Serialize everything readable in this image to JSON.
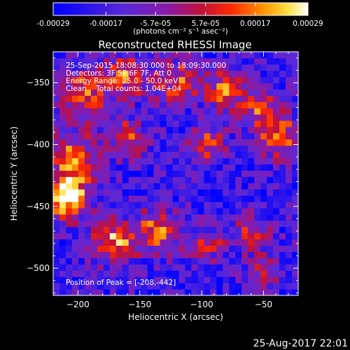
{
  "chart_data": {
    "type": "heatmap",
    "title": "Reconstructed RHESSI Image",
    "xlabel": "Heliocentric X (arcsec)",
    "ylabel": "Heliocentric Y (arcsec)",
    "xlim": [
      -220,
      -22
    ],
    "ylim": [
      -522,
      -325
    ],
    "x_ticks": [
      -200,
      -150,
      -100,
      -50
    ],
    "y_ticks": [
      -500,
      -450,
      -400,
      -350
    ],
    "colorbar": {
      "ticks": [
        "-0.00029",
        "-0.00017",
        "-5.7e-05",
        "5.7e-05",
        "0.00017",
        "0.00029"
      ],
      "unit_label": "(photons cm⁻² s⁻¹ asec⁻²)",
      "range": [
        -0.00029,
        0.00029
      ],
      "colormap": "blue-purple-red-yellow-white"
    },
    "annotations": [
      "25-Sep-2015 18:08:30.000 to 18:09:30.000",
      "Detectors: 3F 5F 6F 7F, Att 0",
      "Energy Range: 25.0 - 50.0 keV",
      "Clean    Total counts: 1.04E+04"
    ],
    "peak_label": "Position of Peak = [-208,-442]",
    "peak_position": [
      -208,
      -442
    ],
    "grid_size": [
      39,
      39
    ],
    "emission_structure": {
      "blobs": [
        {
          "x": -208,
          "y": -442,
          "amp": 1.6,
          "sigma": 12
        },
        {
          "x": -205,
          "y": -410,
          "amp": 1.0,
          "sigma": 14
        },
        {
          "x": -195,
          "y": -360,
          "amp": 1.0,
          "sigma": 14
        },
        {
          "x": -160,
          "y": -345,
          "amp": 0.9,
          "sigma": 12
        },
        {
          "x": -120,
          "y": -350,
          "amp": 0.9,
          "sigma": 12
        },
        {
          "x": -80,
          "y": -355,
          "amp": 0.9,
          "sigma": 12
        },
        {
          "x": -50,
          "y": -375,
          "amp": 0.8,
          "sigma": 12
        },
        {
          "x": -35,
          "y": -395,
          "amp": 0.8,
          "sigma": 12
        },
        {
          "x": -160,
          "y": -395,
          "amp": 0.9,
          "sigma": 10
        },
        {
          "x": -95,
          "y": -400,
          "amp": 0.8,
          "sigma": 10
        },
        {
          "x": -170,
          "y": -478,
          "amp": 1.1,
          "sigma": 12
        },
        {
          "x": -135,
          "y": -470,
          "amp": 1.0,
          "sigma": 12
        },
        {
          "x": -95,
          "y": -480,
          "amp": 0.6,
          "sigma": 10
        },
        {
          "x": -60,
          "y": -470,
          "amp": 0.7,
          "sigma": 10
        },
        {
          "x": -50,
          "y": -500,
          "amp": 0.6,
          "sigma": 10
        }
      ],
      "background": -0.15,
      "noise_amplitude": 0.4,
      "noise_seed": 7
    }
  },
  "footer_timestamp": "25-Aug-2017 22:01"
}
